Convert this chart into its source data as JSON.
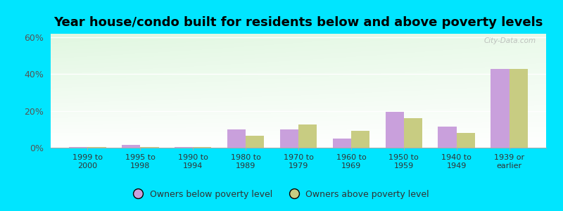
{
  "title": "Year house/condo built for residents below and above poverty levels",
  "categories": [
    "1999 to\n2000",
    "1995 to\n1998",
    "1990 to\n1994",
    "1980 to\n1989",
    "1970 to\n1979",
    "1960 to\n1969",
    "1950 to\n1959",
    "1940 to\n1949",
    "1939 or\nearlier"
  ],
  "below_poverty": [
    0.5,
    1.5,
    0.5,
    10.0,
    10.0,
    5.0,
    19.5,
    11.5,
    43.0
  ],
  "above_poverty": [
    0.5,
    0.5,
    0.5,
    6.5,
    12.5,
    9.0,
    16.0,
    8.0,
    43.0
  ],
  "below_color": "#c9a0dc",
  "above_color": "#c8cc82",
  "ylim": [
    0,
    62
  ],
  "yticks": [
    0,
    20,
    40,
    60
  ],
  "ytick_labels": [
    "0%",
    "20%",
    "40%",
    "60%"
  ],
  "outer_background": "#00e5ff",
  "title_fontsize": 13,
  "legend_below": "Owners below poverty level",
  "legend_above": "Owners above poverty level",
  "watermark": "City-Data.com"
}
